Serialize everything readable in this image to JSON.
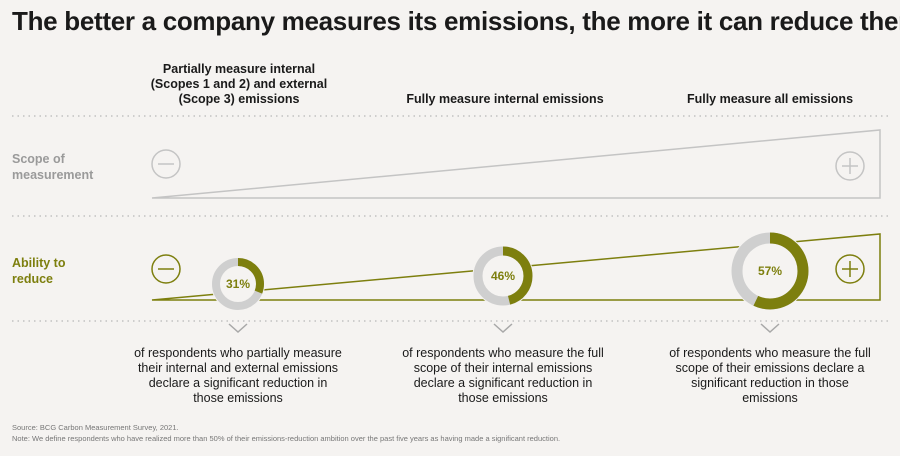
{
  "title": "The better a company measures its emissions, the more it can reduce them",
  "columns": [
    "Partially measure internal (Scopes 1 and 2) and external (Scope 3) emissions",
    "Fully measure internal emissions",
    "Fully measure all emissions"
  ],
  "rows": {
    "scope": "Scope of measurement",
    "reduce": "Ability to reduce"
  },
  "descriptions": [
    "of respondents who partially measure their internal and external emissions declare a significant reduction in those emissions",
    "of respondents who measure the full scope of their internal emissions declare a significant reduction in those emissions",
    "of respondents who measure the full scope of their emissions declare a significant reduction in those emissions"
  ],
  "footer": {
    "source": "Source: BCG Carbon Measurement Survey, 2021.",
    "note": "Note: We define respondents who have realized more than 50% of their emissions-reduction ambition over the past five years as having made a significant reduction."
  },
  "colors": {
    "accent": "#7d7f0e",
    "gray": "#c9c9c9",
    "ring_bg": "#cfcfcf",
    "scope_gray": "#a8a8a8",
    "dot": "#b8b8b8"
  },
  "chart_data": {
    "type": "donut",
    "categories": [
      "Partially measure internal and external emissions",
      "Fully measure internal emissions",
      "Fully measure all emissions"
    ],
    "values": [
      31,
      46,
      57
    ],
    "labels": [
      "31%",
      "46%",
      "57%"
    ],
    "unit": "%",
    "ylim": [
      0,
      100
    ]
  }
}
